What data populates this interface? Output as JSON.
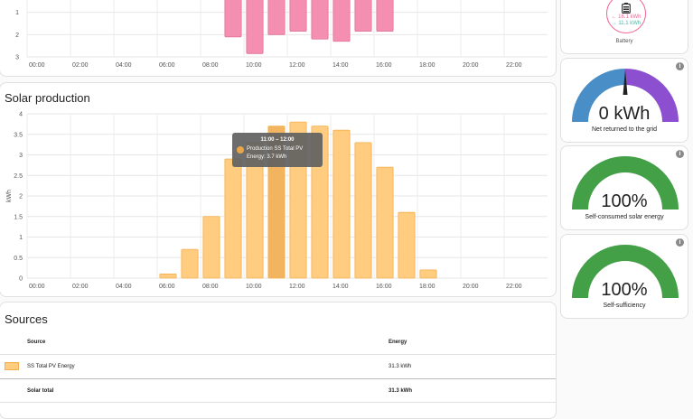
{
  "consumption_chart": {
    "y_ticks": [
      "1",
      "2",
      "3"
    ],
    "x_ticks": [
      "00:00",
      "02:00",
      "04:00",
      "06:00",
      "08:00",
      "10:00",
      "12:00",
      "14:00",
      "16:00",
      "18:00",
      "20:00",
      "22:00"
    ],
    "bar_color": "#f48fb1",
    "bars": [
      {
        "hour": 9,
        "value": 2.1
      },
      {
        "hour": 10,
        "value": 2.85
      },
      {
        "hour": 11,
        "value": 2.0
      },
      {
        "hour": 12,
        "value": 1.85
      },
      {
        "hour": 13,
        "value": 2.2
      },
      {
        "hour": 14,
        "value": 2.3
      },
      {
        "hour": 15,
        "value": 1.85
      },
      {
        "hour": 16,
        "value": 1.85
      }
    ]
  },
  "solar_chart": {
    "title": "Solar production",
    "ylabel": "kWh",
    "bar_color": "#ffcc80",
    "bar_border": "#f5b04d",
    "tooltip": {
      "time": "11:00 – 12:00",
      "series": "Production SS Total PV",
      "energy": "Energy: 3.7 kWh"
    }
  },
  "chart_data": {
    "type": "bar",
    "categories": [
      "00:00",
      "01:00",
      "02:00",
      "03:00",
      "04:00",
      "05:00",
      "06:00",
      "07:00",
      "08:00",
      "09:00",
      "10:00",
      "11:00",
      "12:00",
      "13:00",
      "14:00",
      "15:00",
      "16:00",
      "17:00",
      "18:00",
      "19:00",
      "20:00",
      "21:00",
      "22:00",
      "23:00"
    ],
    "series": [
      {
        "name": "Production SS Total PV",
        "values": [
          0,
          0,
          0,
          0,
          0,
          0,
          0.1,
          0.7,
          1.5,
          2.9,
          3.3,
          3.7,
          3.8,
          3.7,
          3.6,
          3.3,
          2.7,
          1.6,
          0.2,
          0,
          0,
          0,
          0,
          0
        ]
      }
    ],
    "ylabel": "kWh",
    "ylim": [
      0,
      4
    ],
    "y_ticks": [
      "0",
      "0.5",
      "1",
      "1.5",
      "2",
      "2.5",
      "3",
      "3.5",
      "4"
    ],
    "x_ticks": [
      "00:00",
      "02:00",
      "04:00",
      "06:00",
      "08:00",
      "10:00",
      "12:00",
      "14:00",
      "16:00",
      "18:00",
      "20:00",
      "22:00"
    ],
    "grid": true,
    "highlighted_category": "11:00"
  },
  "sources": {
    "title": "Sources",
    "headers": {
      "source": "Source",
      "energy": "Energy"
    },
    "rows": [
      {
        "name": "SS Total PV Energy",
        "energy": "31.3 kWh",
        "color": "#ffcc80"
      }
    ],
    "total": {
      "name": "Solar total",
      "energy": "31.3 kWh"
    }
  },
  "battery": {
    "label": "Battery",
    "in_value": "← 16.1 kWh",
    "out_value": "→ 11.1 kWh",
    "in_color": "#f06292",
    "out_color": "#4db6ac"
  },
  "gauges": [
    {
      "value": "0 kWh",
      "label": "Net returned to the grid",
      "type": "split",
      "colors": [
        "#4a8ec8",
        "#8c4fd0"
      ]
    },
    {
      "value": "100%",
      "label": "Self-consumed solar energy",
      "type": "full",
      "color": "#43a047",
      "level": 1.0
    },
    {
      "value": "100%",
      "label": "Self-sufficiency",
      "type": "full",
      "color": "#43a047",
      "level": 1.0
    }
  ]
}
